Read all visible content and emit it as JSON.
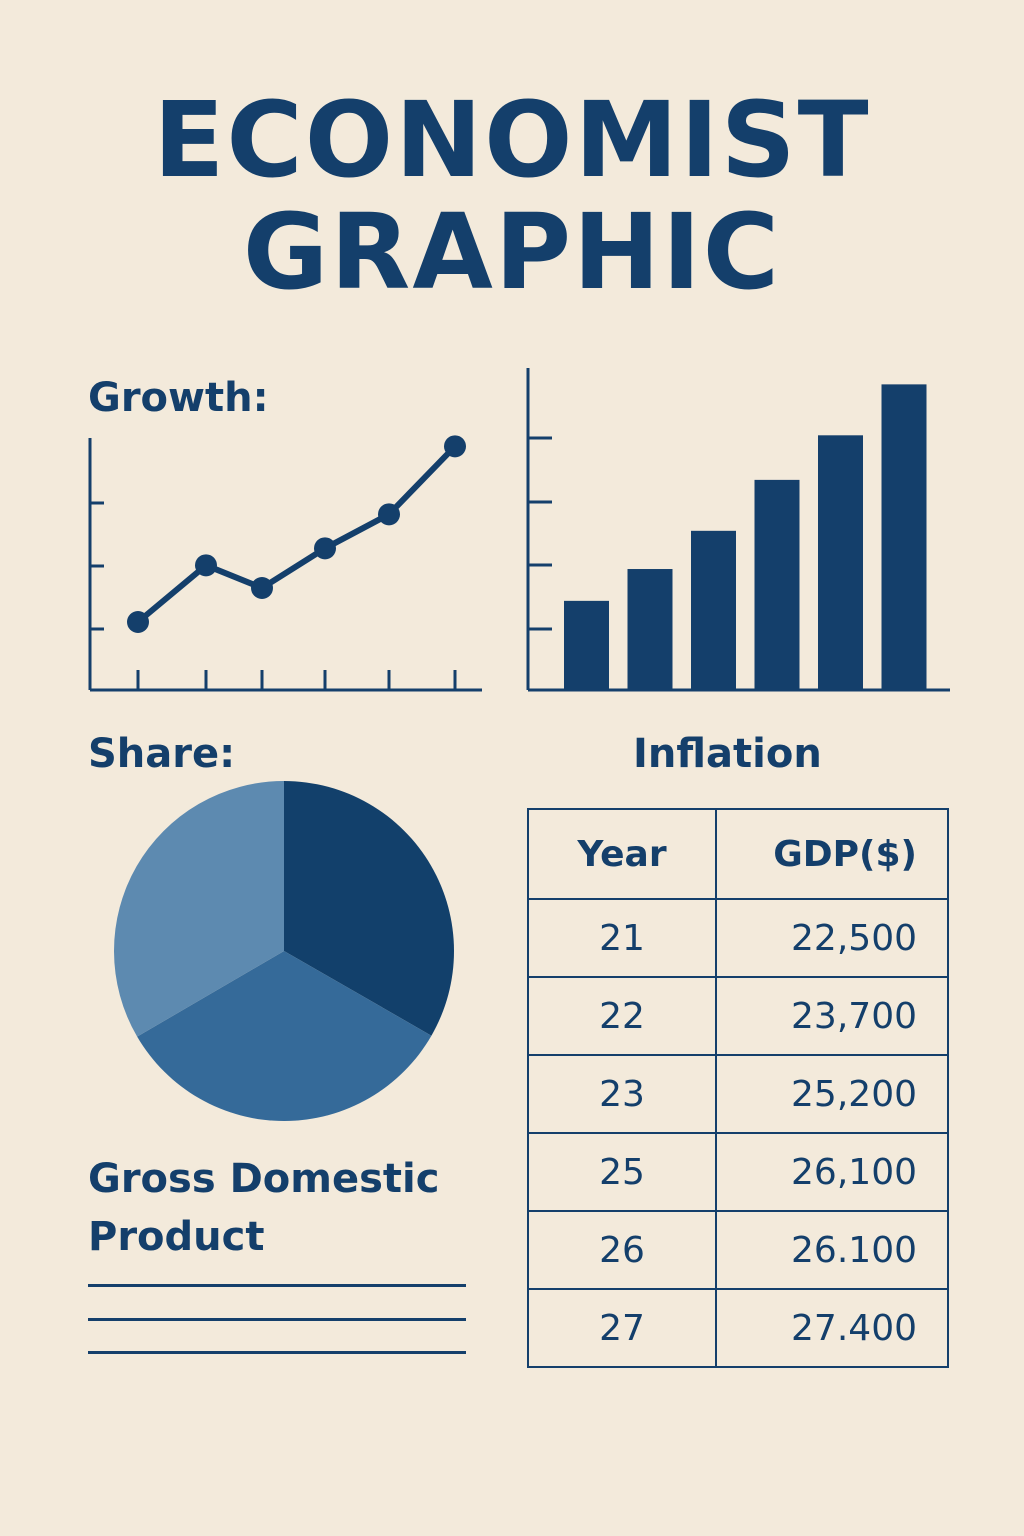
{
  "header": {
    "line1": "ECONOMIST",
    "line2": "GRAPHIC"
  },
  "labels": {
    "growth": "Growth:",
    "share": "Share:",
    "inflation": "Inflation",
    "gdp": "Gross Domestic Product"
  },
  "colors": {
    "background": "#f3eadb",
    "navy": "#143f6b",
    "pie_dark": "#12406b",
    "pie_mid": "#356a99",
    "pie_light": "#5d8ab0"
  },
  "chart_data": [
    {
      "type": "line",
      "title": "Growth:",
      "x": [
        1,
        2,
        3,
        4,
        5,
        6
      ],
      "values": [
        1.2,
        2.2,
        1.8,
        2.5,
        3.1,
        4.3
      ],
      "ylim": [
        0,
        4.8
      ],
      "grid": false
    },
    {
      "type": "bar",
      "categories": [
        "1",
        "2",
        "3",
        "4",
        "5",
        "6"
      ],
      "values": [
        1.4,
        1.9,
        2.5,
        3.3,
        4.0,
        4.8
      ],
      "ylim": [
        0,
        4.9
      ],
      "grid": false
    },
    {
      "type": "pie",
      "title": "Share:",
      "values": [
        33.3,
        33.3,
        33.4
      ],
      "grid": false
    },
    {
      "type": "table",
      "title": "Inflation",
      "columns": [
        "Year",
        "GDP($)"
      ],
      "rows": [
        [
          "21",
          "22,500"
        ],
        [
          "22",
          "23,700"
        ],
        [
          "23",
          "25,200"
        ],
        [
          "25",
          "26,100"
        ],
        [
          "26",
          "26.100"
        ],
        [
          "27",
          "27.400"
        ]
      ]
    }
  ]
}
